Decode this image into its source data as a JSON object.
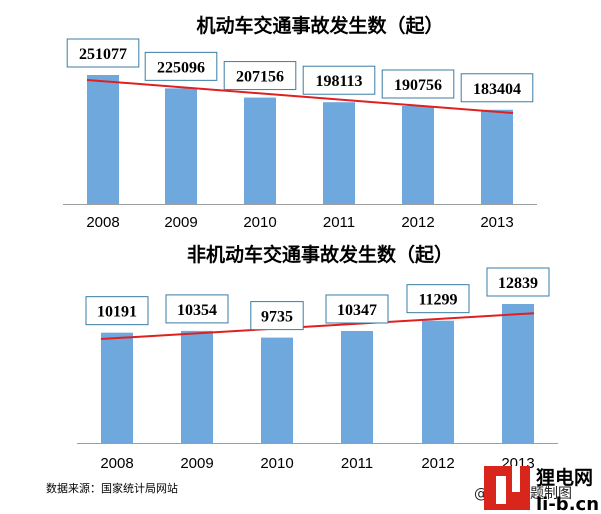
{
  "chart_data": [
    {
      "type": "bar",
      "title": "机动车交通事故发生数（起）",
      "categories": [
        "2008",
        "2009",
        "2010",
        "2011",
        "2012",
        "2013"
      ],
      "values": [
        251077,
        225096,
        207156,
        198113,
        190756,
        183404
      ],
      "trendline": "linear",
      "colors": {
        "bar": "#6fa8dc",
        "trendline": "#e02020",
        "label_border": "#3a7ca5"
      },
      "grid": false,
      "legend": "none"
    },
    {
      "type": "bar",
      "title": "非机动车交通事故发生数（起）",
      "categories": [
        "2008",
        "2009",
        "2010",
        "2011",
        "2012",
        "2013"
      ],
      "values": [
        10191,
        10354,
        9735,
        10347,
        11299,
        12839
      ],
      "trendline": "linear",
      "colors": {
        "bar": "#6fa8dc",
        "trendline": "#e02020",
        "label_border": "#3a7ca5"
      },
      "grid": false,
      "legend": "none"
    }
  ],
  "footer": {
    "source": "数据来源：国家统计局网站",
    "credit": "@今日话题制图",
    "logo_text": "狸电网",
    "logo_url_text": "li-b.cn",
    "logo_colors": {
      "mark": "#d9261c",
      "text": "#000000"
    }
  }
}
